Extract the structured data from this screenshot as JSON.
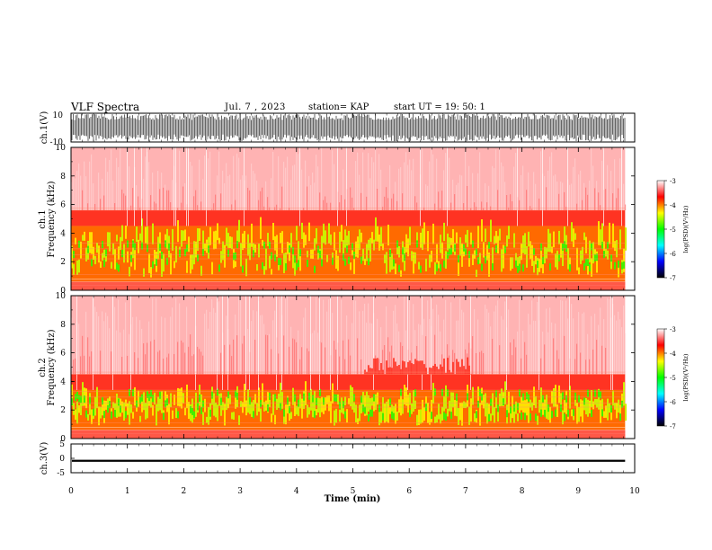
{
  "header": {
    "title": "VLF Spectra",
    "date": "Jul. 7 , 2023",
    "station": "station= KAP",
    "start": "start UT = 19: 50: 1"
  },
  "chart_data": [
    {
      "type": "line",
      "panel": "ch1-waveform",
      "ylabel": "ch.1(V)",
      "ylim": [
        -10,
        10
      ],
      "yticks": [
        10,
        -10
      ],
      "x_range": [
        0,
        9.83
      ],
      "series": [
        {
          "values_range": [
            -10,
            10
          ]
        }
      ]
    },
    {
      "type": "heatmap",
      "panel": "ch1-spectrogram",
      "ylabel": "ch.1 Frequency (kHz)",
      "ylim": [
        0,
        10
      ],
      "yticks": [
        0,
        2,
        4,
        6,
        8,
        10
      ],
      "x_range": [
        0,
        9.83
      ],
      "bands": [
        {
          "from_khz": 0.6,
          "to_khz": 4.5,
          "level": "high"
        },
        {
          "from_khz": 4.5,
          "to_khz": 5.6,
          "level": "medium"
        },
        {
          "from_khz": 5.6,
          "to_khz": 10,
          "level": "low"
        }
      ],
      "colorbar": {
        "label": "log(PSD)(V²/Hz)",
        "ticks": [
          -3,
          -4,
          -5,
          -6,
          -7
        ],
        "range": [
          -7,
          -3
        ],
        "colors": [
          "#ffffff",
          "#ff0000",
          "#ffff00",
          "#00ff00",
          "#00ffff",
          "#0000ff",
          "#000000"
        ]
      }
    },
    {
      "type": "heatmap",
      "panel": "ch2-spectrogram",
      "ylabel": "ch.2 Frequency (kHz)",
      "ylim": [
        0,
        10
      ],
      "yticks": [
        0,
        2,
        4,
        6,
        8,
        10
      ],
      "x_range": [
        0,
        9.83
      ],
      "bands": [
        {
          "from_khz": 0.6,
          "to_khz": 3.4,
          "level": "high"
        },
        {
          "from_khz": 3.4,
          "to_khz": 4.5,
          "level": "medium"
        },
        {
          "from_khz": 4.5,
          "to_khz": 10,
          "level": "low"
        }
      ],
      "colorbar": {
        "label": "log(PSD)(V²/Hz)",
        "ticks": [
          -3,
          -4,
          -5,
          -6,
          -7
        ],
        "range": [
          -7,
          -3
        ],
        "colors": [
          "#ffffff",
          "#ff0000",
          "#ffff00",
          "#00ff00",
          "#00ffff",
          "#0000ff",
          "#000000"
        ]
      }
    },
    {
      "type": "line",
      "panel": "ch3-waveform",
      "ylabel": "ch.3(V)",
      "ylim": [
        -5,
        5
      ],
      "yticks": [
        5,
        0,
        -5
      ],
      "x_range": [
        0,
        9.83
      ],
      "series": [
        {
          "values_range": [
            -1.2,
            -0.5
          ]
        }
      ]
    }
  ],
  "x_axis": {
    "label": "Time (min)",
    "ticks": [
      0,
      1,
      2,
      3,
      4,
      5,
      6,
      7,
      8,
      9,
      10
    ],
    "range": [
      0,
      10
    ]
  }
}
